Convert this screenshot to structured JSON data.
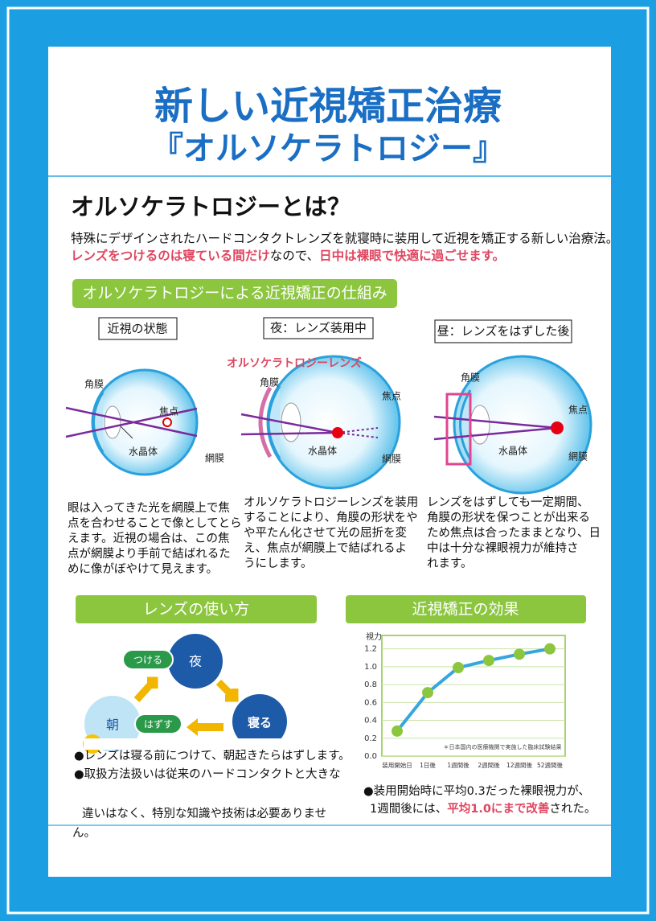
{
  "header": {
    "title": "新しい近視矯正治療",
    "subtitle": "『オルソケラトロジー』"
  },
  "intro": {
    "heading": "オルソケラトロジーとは？",
    "line1": "特殊にデザインされたハードコンタクトレンズを就寝時に装用して近視を矯正する新しい治療法。",
    "line2": [
      "レンズをつけるのは寝ている間だけ",
      "なので、",
      "日中は裸眼で快適に過ごせます。"
    ]
  },
  "mechanism": {
    "label": "オルソケラトロジーによる近視矯正の仕組み",
    "panels": [
      {
        "title": "近視の状態",
        "labels": [
          "角膜",
          "焦点",
          "水晶体",
          "網膜"
        ],
        "text": [
          "眼は入ってきた光を網膜上で焦",
          "点を合わせることで像としてとら",
          "えます。近視の場合は、この焦",
          "点が網膜より手前で結ばれるた",
          "めに像がぼやけて見えます。"
        ]
      },
      {
        "title": "夜：レンズ装用中",
        "labels": [
          "オルソケラトロジーレンズ",
          "角膜",
          "焦点",
          "水晶体",
          "網膜"
        ],
        "text": [
          "オルソケラトロジーレンズを装用",
          "することにより、角膜の形状をや",
          "や平たん化させて光の屈折を変",
          "え、焦点が網膜上で結ばれるよ",
          "うにします。"
        ]
      },
      {
        "title": "昼：レンズをはずした後",
        "labels": [
          "角膜",
          "焦点",
          "水晶体",
          "網膜"
        ],
        "text": [
          "レンズをはずしても一定期間、",
          "角膜の形状を保つことが出来る",
          "ため焦点は合ったままとなり、日",
          "中は十分な裸眼視力が維持さ",
          "れます。"
        ]
      }
    ]
  },
  "usage": {
    "label": "レンズの使い方",
    "steps": [
      "つける",
      "夜",
      "寝る",
      "はずす",
      "朝"
    ],
    "bullets": [
      "●レンズは寝る前につけて、朝起きたらはずします。",
      "●取扱方法扱いは従来のハードコンタクトと大きな",
      "違いはなく、特別な知識や技術は必要ありませ",
      "ん。"
    ]
  },
  "effect": {
    "label": "近視矯正の効果",
    "chart_data": {
      "type": "line",
      "y_label": "視力",
      "note": "＊日本国内の医療機関で実施した臨床試験結果",
      "categories": [
        "装用開始日",
        "1日後",
        "1週間後",
        "2週間後",
        "12週間後",
        "52週間後"
      ],
      "values": [
        0.28,
        0.71,
        0.99,
        1.07,
        1.14,
        1.2
      ],
      "line_color": "#35a6e0",
      "marker_color": "#8cc63f",
      "ylim": [
        0,
        1.35
      ],
      "yticks": [
        {
          "value": 0,
          "label": "0.0"
        },
        0.2,
        0.4,
        0.6,
        0.8,
        {
          "value": 1,
          "label": "1.0"
        },
        1.2
      ],
      "grid": true
    },
    "caption1": "●装用開始時に平均0.3だった裸眼視力が、",
    "caption2": [
      "1週間後には、",
      "平均1.0にまで改善",
      "された。"
    ]
  }
}
